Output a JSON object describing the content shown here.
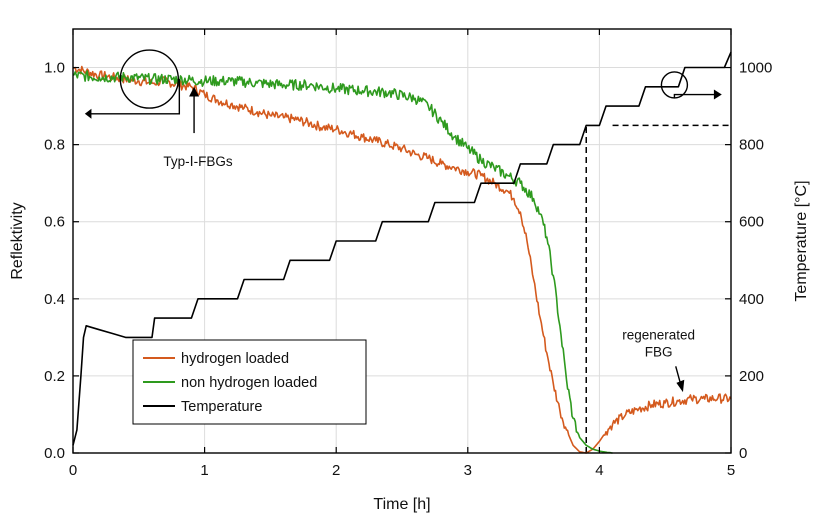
{
  "chart_data": {
    "type": "line",
    "xlabel": "Time [h]",
    "ylabel": "Reflektivity",
    "y2label": "Temperature [°C]",
    "xlim": [
      0,
      5
    ],
    "ylim": [
      0,
      1.1
    ],
    "y2lim": [
      0,
      1100
    ],
    "grid": true,
    "legend_position": "bottom-left",
    "x_ticks": [
      0,
      1,
      2,
      3,
      4,
      5
    ],
    "y_ticks": [
      0.0,
      0.2,
      0.4,
      0.6,
      0.8,
      1.0
    ],
    "y2_ticks": [
      0,
      200,
      400,
      600,
      800,
      1000
    ],
    "series": [
      {
        "name": "hydrogen loaded",
        "color": "#d45a1e",
        "axis": "left",
        "x": [
          0,
          0.1,
          0.2,
          0.3,
          0.4,
          0.5,
          0.6,
          0.7,
          0.8,
          0.9,
          1.0,
          1.1,
          1.2,
          1.3,
          1.4,
          1.5,
          1.6,
          1.7,
          1.8,
          1.9,
          2.0,
          2.1,
          2.2,
          2.3,
          2.4,
          2.5,
          2.6,
          2.7,
          2.8,
          2.9,
          3.0,
          3.1,
          3.2,
          3.3,
          3.35,
          3.4,
          3.45,
          3.5,
          3.55,
          3.6,
          3.65,
          3.7,
          3.75,
          3.8,
          3.85,
          3.9,
          3.95,
          4.0,
          4.05,
          4.1,
          4.2,
          4.3,
          4.4,
          4.5,
          4.6,
          4.7,
          4.8,
          4.9,
          5.0
        ],
        "values": [
          1.0,
          0.99,
          0.98,
          0.975,
          0.97,
          0.965,
          0.96,
          0.965,
          0.955,
          0.95,
          0.93,
          0.915,
          0.905,
          0.895,
          0.885,
          0.875,
          0.87,
          0.865,
          0.855,
          0.845,
          0.84,
          0.83,
          0.82,
          0.81,
          0.8,
          0.79,
          0.775,
          0.765,
          0.75,
          0.74,
          0.73,
          0.72,
          0.7,
          0.68,
          0.66,
          0.625,
          0.55,
          0.45,
          0.35,
          0.26,
          0.18,
          0.11,
          0.06,
          0.02,
          0.003,
          0.0,
          0.01,
          0.03,
          0.055,
          0.075,
          0.1,
          0.115,
          0.125,
          0.13,
          0.135,
          0.14,
          0.14,
          0.142,
          0.14
        ]
      },
      {
        "name": "non hydrogen loaded",
        "color": "#2e9a1e",
        "axis": "left",
        "x": [
          0,
          0.2,
          0.4,
          0.6,
          0.8,
          1.0,
          1.2,
          1.4,
          1.6,
          1.8,
          2.0,
          2.2,
          2.4,
          2.6,
          2.7,
          2.8,
          2.9,
          3.0,
          3.1,
          3.2,
          3.3,
          3.4,
          3.5,
          3.55,
          3.6,
          3.65,
          3.7,
          3.75,
          3.8,
          3.85,
          3.9,
          3.95,
          4.0,
          4.05,
          4.1
        ],
        "values": [
          0.98,
          0.975,
          0.975,
          0.97,
          0.97,
          0.965,
          0.965,
          0.96,
          0.955,
          0.955,
          0.945,
          0.94,
          0.935,
          0.92,
          0.9,
          0.86,
          0.82,
          0.79,
          0.76,
          0.74,
          0.72,
          0.7,
          0.66,
          0.62,
          0.56,
          0.46,
          0.33,
          0.19,
          0.09,
          0.04,
          0.02,
          0.01,
          0.005,
          0.002,
          0.0
        ]
      },
      {
        "name": "Temperature",
        "color": "#000000",
        "axis": "right",
        "x": [
          0.0,
          0.03,
          0.06,
          0.08,
          0.1,
          0.2,
          0.3,
          0.4,
          0.5,
          0.6,
          0.62,
          0.9,
          0.95,
          1.25,
          1.3,
          1.6,
          1.65,
          1.95,
          2.0,
          2.3,
          2.35,
          2.7,
          2.75,
          3.05,
          3.1,
          3.35,
          3.4,
          3.6,
          3.65,
          3.85,
          3.9,
          4.0,
          4.05,
          4.3,
          4.35,
          4.6,
          4.65,
          4.95,
          5.0
        ],
        "values": [
          20,
          60,
          200,
          300,
          330,
          320,
          310,
          300,
          300,
          300,
          350,
          350,
          400,
          400,
          450,
          450,
          500,
          500,
          550,
          550,
          600,
          600,
          650,
          650,
          700,
          700,
          750,
          750,
          800,
          800,
          850,
          850,
          900,
          900,
          950,
          950,
          1000,
          1000,
          1040
        ]
      }
    ],
    "annotations": [
      {
        "text": "Typ-Ⅰ-FBGs",
        "x": 0.95,
        "y": 0.77
      },
      {
        "text_lines": [
          "regenerated",
          "FBG"
        ],
        "x": 4.55,
        "y": 0.29
      }
    ],
    "reference_lines": [
      {
        "orientation": "vertical",
        "x": 3.9,
        "from_y2": 0,
        "to_y2": 850,
        "style": "dashed"
      },
      {
        "orientation": "horizontal",
        "y2": 850,
        "from_x": 4.1,
        "to_x": 5.0,
        "style": "dashed"
      }
    ]
  }
}
